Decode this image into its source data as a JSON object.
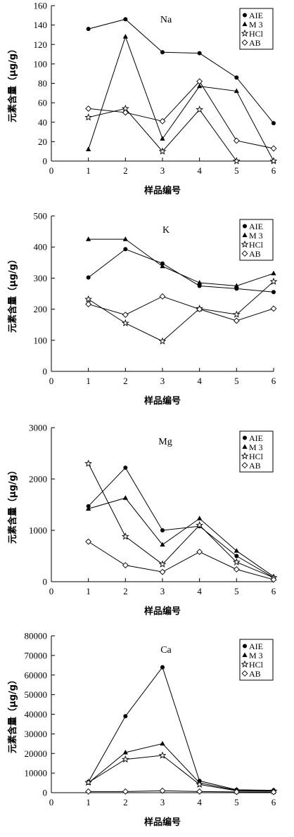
{
  "chart_data": [
    {
      "type": "line",
      "title": "Na",
      "xlabel": "样品编号",
      "ylabel": "元素含量（μg/g）",
      "xlim": [
        0,
        6
      ],
      "ylim": [
        0,
        160
      ],
      "xticks": [
        0,
        1,
        2,
        3,
        4,
        5,
        6
      ],
      "yticks": [
        0,
        20,
        40,
        60,
        80,
        100,
        120,
        140,
        160
      ],
      "legend_position": "top-right",
      "x": [
        1,
        2,
        3,
        4,
        5,
        6
      ],
      "series": [
        {
          "name": "AIE",
          "marker": "circle",
          "values": [
            136,
            146,
            112,
            111,
            86,
            39
          ]
        },
        {
          "name": "M 3",
          "marker": "triangle",
          "values": [
            12,
            128,
            23,
            77,
            72,
            0
          ]
        },
        {
          "name": "HCl",
          "marker": "star",
          "values": [
            45,
            54,
            10,
            53,
            0,
            0
          ]
        },
        {
          "name": "AB",
          "marker": "diamond",
          "values": [
            54,
            50,
            41,
            82,
            21,
            13
          ]
        }
      ]
    },
    {
      "type": "line",
      "title": "K",
      "xlabel": "样品编号",
      "ylabel": "元素含量（μg/g）",
      "xlim": [
        0,
        6
      ],
      "ylim": [
        0,
        500
      ],
      "xticks": [
        0,
        1,
        2,
        3,
        4,
        5,
        6
      ],
      "yticks": [
        0,
        100,
        200,
        300,
        400,
        500
      ],
      "legend_position": "top-right",
      "x": [
        1,
        2,
        3,
        4,
        5,
        6
      ],
      "series": [
        {
          "name": "AIE",
          "marker": "circle",
          "values": [
            302,
            393,
            347,
            275,
            266,
            255
          ]
        },
        {
          "name": "M 3",
          "marker": "triangle",
          "values": [
            425,
            425,
            338,
            285,
            275,
            315
          ]
        },
        {
          "name": "HCl",
          "marker": "star",
          "values": [
            232,
            155,
            97,
            202,
            183,
            289
          ]
        },
        {
          "name": "AB",
          "marker": "diamond",
          "values": [
            216,
            182,
            241,
            200,
            163,
            202
          ]
        }
      ]
    },
    {
      "type": "line",
      "title": "Mg",
      "xlabel": "样品编号",
      "ylabel": "元素含量（μg/g）",
      "xlim": [
        0,
        6
      ],
      "ylim": [
        0,
        3000
      ],
      "xticks": [
        0,
        1,
        2,
        3,
        4,
        5,
        6
      ],
      "yticks": [
        0,
        1000,
        2000,
        3000
      ],
      "legend_position": "top-right",
      "x": [
        1,
        2,
        3,
        4,
        5,
        6
      ],
      "series": [
        {
          "name": "AIE",
          "marker": "circle",
          "values": [
            1470,
            2220,
            1000,
            1080,
            500,
            80
          ]
        },
        {
          "name": "M 3",
          "marker": "triangle",
          "values": [
            1420,
            1630,
            720,
            1230,
            600,
            100
          ]
        },
        {
          "name": "HCl",
          "marker": "star",
          "values": [
            2300,
            880,
            340,
            1100,
            380,
            80
          ]
        },
        {
          "name": "AB",
          "marker": "diamond",
          "values": [
            780,
            320,
            190,
            580,
            240,
            40
          ]
        }
      ]
    },
    {
      "type": "line",
      "title": "Ca",
      "xlabel": "样品编号",
      "ylabel": "元素含量（μg/g）",
      "xlim": [
        0,
        6
      ],
      "ylim": [
        0,
        80000
      ],
      "xticks": [
        0,
        1,
        2,
        3,
        4,
        5,
        6
      ],
      "yticks": [
        0,
        10000,
        20000,
        30000,
        40000,
        50000,
        60000,
        70000,
        80000
      ],
      "legend_position": "top-right",
      "x": [
        1,
        2,
        3,
        4,
        5,
        6
      ],
      "series": [
        {
          "name": "AIE",
          "marker": "circle",
          "values": [
            5500,
            39000,
            64000,
            6000,
            1500,
            1200
          ]
        },
        {
          "name": "M 3",
          "marker": "triangle",
          "values": [
            5000,
            20500,
            25000,
            5000,
            1200,
            900
          ]
        },
        {
          "name": "HCl",
          "marker": "star",
          "values": [
            5200,
            17000,
            19000,
            4200,
            1000,
            800
          ]
        },
        {
          "name": "AB",
          "marker": "diamond",
          "values": [
            600,
            600,
            1000,
            600,
            400,
            300
          ]
        }
      ]
    }
  ]
}
